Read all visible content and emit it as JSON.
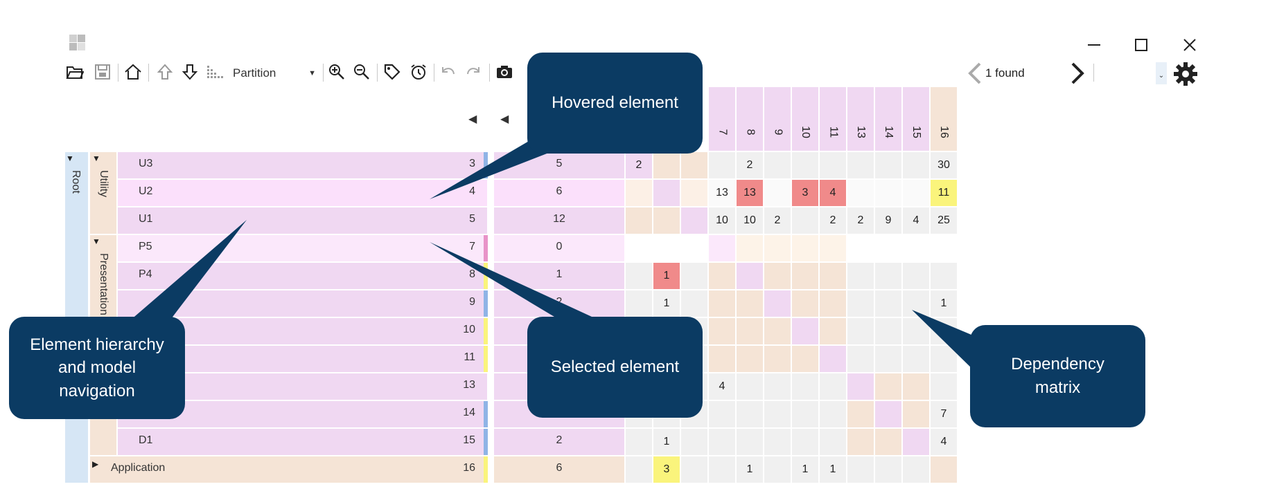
{
  "window": {
    "controls": [
      "minimize",
      "maximize",
      "close"
    ]
  },
  "toolbar": {
    "partition_label": "Partition",
    "search_result": "1 found"
  },
  "hierarchy": {
    "root_label": "Root",
    "groups": [
      {
        "label": "Utility"
      },
      {
        "label": "Presentation"
      }
    ],
    "collapsed": {
      "label": "Application",
      "id": "16",
      "dep": "6"
    }
  },
  "rows": [
    {
      "label": "U3",
      "id": "3",
      "dep": "5"
    },
    {
      "label": "U2",
      "id": "4",
      "dep": "6"
    },
    {
      "label": "U1",
      "id": "5",
      "dep": "12"
    },
    {
      "label": "P5",
      "id": "7",
      "dep": "0"
    },
    {
      "label": "P4",
      "id": "8",
      "dep": "1"
    },
    {
      "label": "",
      "id": "9",
      "dep": "2"
    },
    {
      "label": "",
      "id": "10",
      "dep": ""
    },
    {
      "label": "",
      "id": "11",
      "dep": ""
    },
    {
      "label": "",
      "id": "13",
      "dep": ""
    },
    {
      "label": "",
      "id": "14",
      "dep": ""
    },
    {
      "label": "D1",
      "id": "15",
      "dep": "2"
    }
  ],
  "matrix": {
    "columns": [
      "7",
      "8",
      "9",
      "10",
      "11",
      "13",
      "14",
      "15",
      "16"
    ],
    "values": [
      [
        "2",
        "",
        "",
        "",
        "2",
        "",
        "",
        "",
        "",
        "",
        "",
        "30"
      ],
      [
        "",
        "",
        "",
        "13",
        "13",
        "",
        "3",
        "4",
        "",
        "",
        "",
        "11"
      ],
      [
        "",
        "",
        "",
        "10",
        "10",
        "2",
        "",
        "2",
        "2",
        "9",
        "4",
        "25"
      ],
      [
        "",
        "",
        "",
        "",
        "",
        "",
        "",
        "",
        "",
        "",
        "",
        ""
      ],
      [
        "",
        "1",
        "",
        "",
        "",
        "",
        "",
        "",
        "",
        "",
        "",
        ""
      ],
      [
        "",
        "1",
        "",
        "",
        "",
        "",
        "",
        "",
        "",
        "",
        "",
        "1"
      ],
      [
        "",
        "",
        "",
        "",
        "",
        "",
        "",
        "",
        "",
        "",
        "",
        ""
      ],
      [
        "",
        "",
        "",
        "",
        "",
        "",
        "",
        "",
        "",
        "",
        "",
        ""
      ],
      [
        "",
        "",
        "",
        "4",
        "",
        "",
        "",
        "",
        "",
        "",
        "",
        ""
      ],
      [
        "",
        "",
        "",
        "",
        "",
        "",
        "",
        "",
        "",
        "",
        "",
        "7"
      ],
      [
        "",
        "1",
        "",
        "",
        "",
        "",
        "",
        "",
        "",
        "",
        "",
        "4"
      ],
      [
        "",
        "3",
        "",
        "",
        "1",
        "",
        "1",
        "1",
        "",
        "",
        "",
        ""
      ]
    ]
  },
  "callouts": {
    "hovered": "Hovered element",
    "selected": "Selected element",
    "hierarchy": "Element hierarchy and model navigation",
    "matrix": "Dependency matrix"
  },
  "colors": {
    "callout": "#0b3b63",
    "row_purple": "#f0d8f2",
    "row_hover": "#fbe0fb",
    "tan": "#f5e4d6",
    "red": "#f08a8a",
    "yellow": "#faf47c",
    "grey": "#f0f0f0",
    "blue_bar": "#8fb4e6",
    "root_blue": "#d6e6f5"
  }
}
